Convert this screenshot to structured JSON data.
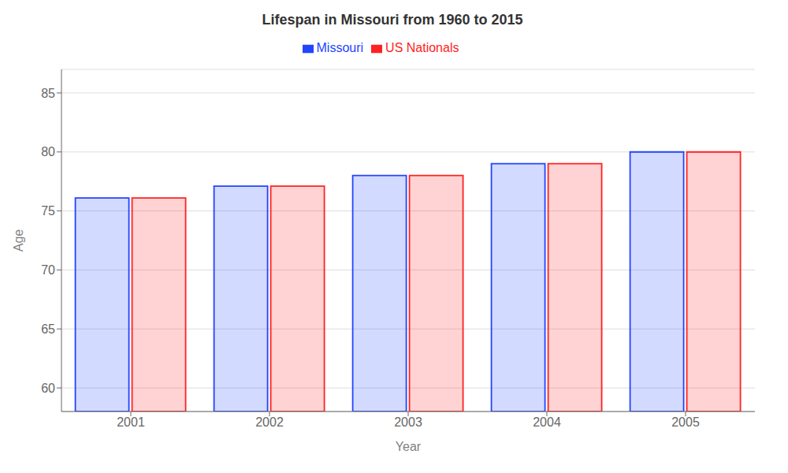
{
  "chart_data": {
    "type": "bar",
    "title": "Lifespan in Missouri from 1960 to 2015",
    "xlabel": "Year",
    "ylabel": "Age",
    "categories": [
      "2001",
      "2002",
      "2003",
      "2004",
      "2005"
    ],
    "series": [
      {
        "name": "Missouri",
        "color": "#2244ff",
        "values": [
          76.1,
          77.1,
          78.0,
          79.0,
          80.0
        ]
      },
      {
        "name": "US Nationals",
        "color": "#ff2222",
        "values": [
          76.1,
          77.1,
          78.0,
          79.0,
          80.0
        ]
      }
    ],
    "ylim": [
      58,
      87
    ],
    "yticks": [
      60,
      65,
      70,
      75,
      80,
      85
    ],
    "grid": true,
    "legend": "top"
  }
}
